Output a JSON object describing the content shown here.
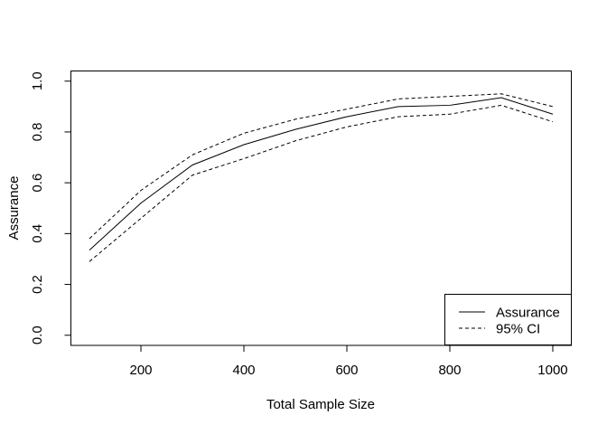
{
  "chart_data": {
    "type": "line",
    "title": "",
    "xlabel": "Total Sample Size",
    "ylabel": "Assurance",
    "xlim": [
      64,
      1036
    ],
    "ylim": [
      -0.04,
      1.04
    ],
    "grid": false,
    "x": [
      100,
      200,
      300,
      400,
      500,
      600,
      700,
      800,
      900,
      1000
    ],
    "series": [
      {
        "name": "Assurance",
        "style": "solid",
        "values": [
          0.335,
          0.52,
          0.67,
          0.75,
          0.81,
          0.86,
          0.9,
          0.905,
          0.935,
          0.87
        ]
      },
      {
        "name": "95% CI upper",
        "style": "dashed",
        "values": [
          0.38,
          0.57,
          0.71,
          0.795,
          0.85,
          0.89,
          0.93,
          0.94,
          0.95,
          0.9
        ]
      },
      {
        "name": "95% CI lower",
        "style": "dashed",
        "values": [
          0.29,
          0.46,
          0.63,
          0.695,
          0.765,
          0.82,
          0.86,
          0.87,
          0.905,
          0.84
        ]
      }
    ],
    "xticks": {
      "values": [
        200,
        400,
        600,
        800,
        1000
      ],
      "labels": [
        "200",
        "400",
        "600",
        "800",
        "1000"
      ]
    },
    "yticks": {
      "values": [
        0.0,
        0.2,
        0.4,
        0.6,
        0.8,
        1.0
      ],
      "labels": [
        "0.0",
        "0.2",
        "0.4",
        "0.6",
        "0.8",
        "1.0"
      ]
    },
    "legend": {
      "position": "bottomright",
      "entries": [
        {
          "label": "Assurance",
          "style": "solid"
        },
        {
          "label": "95% CI",
          "style": "dashed"
        }
      ]
    },
    "colors": {
      "line": "#000000",
      "text": "#000000",
      "background": "#ffffff"
    }
  }
}
